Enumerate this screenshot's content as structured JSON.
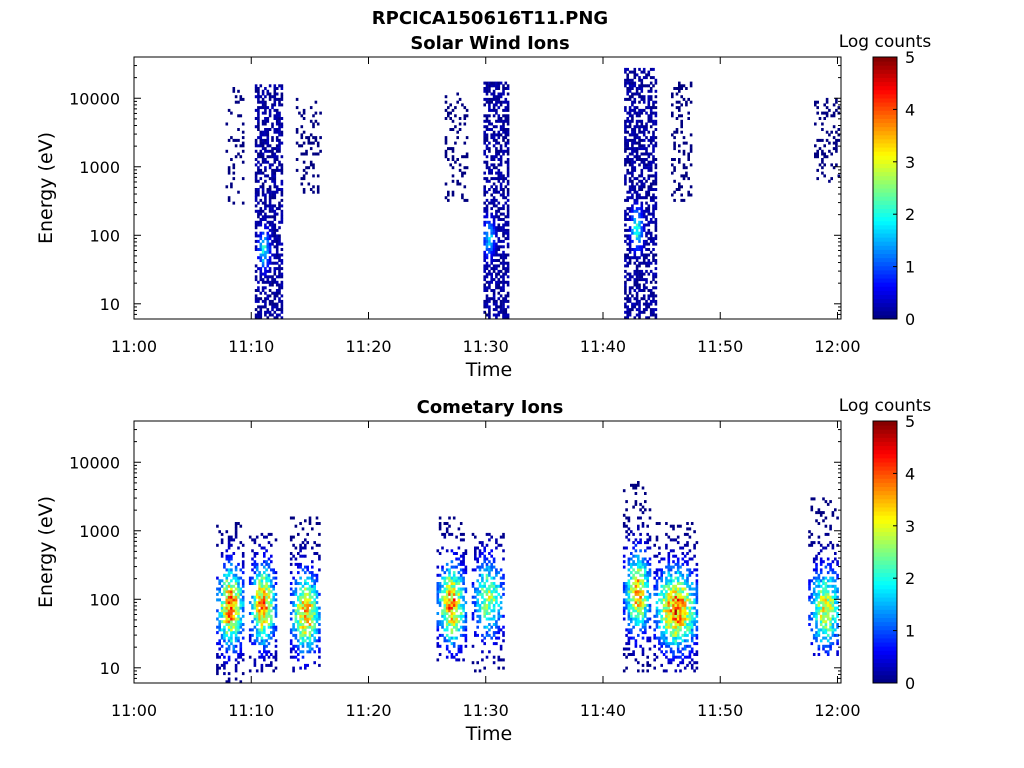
{
  "figure_title": "RPCICA150616T11.PNG",
  "chart_data": [
    {
      "type": "heatmap",
      "title": "Solar Wind Ions",
      "xlabel": "Time",
      "ylabel": "Energy (eV)",
      "yscale": "log",
      "xlim": [
        "11:00",
        "12:00"
      ],
      "ylim": [
        6,
        40000
      ],
      "x_ticks": [
        "11:00",
        "11:10",
        "11:20",
        "11:30",
        "11:40",
        "11:50",
        "12:00"
      ],
      "y_ticks": [
        "10",
        "100",
        "1000",
        "10000"
      ],
      "colorbar": {
        "label": "Log counts",
        "range": [
          0,
          5
        ],
        "ticks": [
          "0",
          "1",
          "2",
          "3",
          "4",
          "5"
        ],
        "colormap": "jet"
      },
      "bursts": [
        {
          "t0": "11:07.8",
          "t1": "11:09.2",
          "emin": 280,
          "emax": 14000,
          "peak": 0.0,
          "density": 0.18
        },
        {
          "t0": "11:10.3",
          "t1": "11:12.5",
          "emin": 6,
          "emax": 15000,
          "peak": 0.3,
          "density": 0.55,
          "hot_t": "11:11.0",
          "hot_e": 60,
          "hot_level": 2.1
        },
        {
          "t0": "11:13.8",
          "t1": "11:15.8",
          "emin": 400,
          "emax": 10000,
          "peak": 0.0,
          "density": 0.2
        },
        {
          "t0": "11:26.5",
          "t1": "11:28.3",
          "emin": 300,
          "emax": 12000,
          "peak": 0.0,
          "density": 0.18
        },
        {
          "t0": "11:29.8",
          "t1": "11:31.8",
          "emin": 6,
          "emax": 16000,
          "peak": 0.3,
          "density": 0.55,
          "hot_t": "11:30.2",
          "hot_e": 90,
          "hot_level": 1.8
        },
        {
          "t0": "11:41.8",
          "t1": "11:44.5",
          "emin": 6,
          "emax": 26000,
          "peak": 0.3,
          "density": 0.55,
          "hot_t": "11:42.8",
          "hot_e": 120,
          "hot_level": 2.4
        },
        {
          "t0": "11:45.8",
          "t1": "11:47.6",
          "emin": 300,
          "emax": 16000,
          "peak": 0.0,
          "density": 0.22
        },
        {
          "t0": "11:58.0",
          "t1": "12:00.5",
          "emin": 500,
          "emax": 10000,
          "peak": 0.0,
          "density": 0.2
        }
      ]
    },
    {
      "type": "heatmap",
      "title": "Cometary Ions",
      "xlabel": "Time",
      "ylabel": "Energy (eV)",
      "yscale": "log",
      "xlim": [
        "11:00",
        "12:00"
      ],
      "ylim": [
        6,
        40000
      ],
      "x_ticks": [
        "11:00",
        "11:10",
        "11:20",
        "11:30",
        "11:40",
        "11:50",
        "12:00"
      ],
      "y_ticks": [
        "10",
        "100",
        "1000",
        "10000"
      ],
      "colorbar": {
        "label": "Log counts",
        "range": [
          0,
          5
        ],
        "ticks": [
          "0",
          "1",
          "2",
          "3",
          "4",
          "5"
        ],
        "colormap": "jet"
      },
      "bursts": [
        {
          "t0": "11:07.0",
          "t1": "11:09.3",
          "emin": 6,
          "emax": 1300,
          "center_e": 75,
          "peak": 4.0,
          "density": 0.8
        },
        {
          "t0": "11:09.8",
          "t1": "11:12.0",
          "emin": 8,
          "emax": 900,
          "center_e": 80,
          "peak": 3.8,
          "density": 0.8
        },
        {
          "t0": "11:13.3",
          "t1": "11:15.8",
          "emin": 8,
          "emax": 1500,
          "center_e": 60,
          "peak": 3.7,
          "density": 0.75
        },
        {
          "t0": "11:25.8",
          "t1": "11:28.2",
          "emin": 12,
          "emax": 1600,
          "center_e": 80,
          "peak": 3.9,
          "density": 0.75
        },
        {
          "t0": "11:28.8",
          "t1": "11:31.5",
          "emin": 8,
          "emax": 900,
          "center_e": 100,
          "peak": 2.8,
          "density": 0.6
        },
        {
          "t0": "11:41.7",
          "t1": "11:44.0",
          "emin": 8,
          "emax": 4900,
          "center_e": 120,
          "peak": 3.6,
          "density": 0.75
        },
        {
          "t0": "11:44.3",
          "t1": "11:48.0",
          "emin": 8,
          "emax": 1300,
          "center_e": 70,
          "peak": 4.0,
          "density": 0.8
        },
        {
          "t0": "11:57.5",
          "t1": "12:00.5",
          "emin": 15,
          "emax": 2800,
          "center_e": 70,
          "peak": 3.2,
          "density": 0.65
        }
      ]
    }
  ]
}
